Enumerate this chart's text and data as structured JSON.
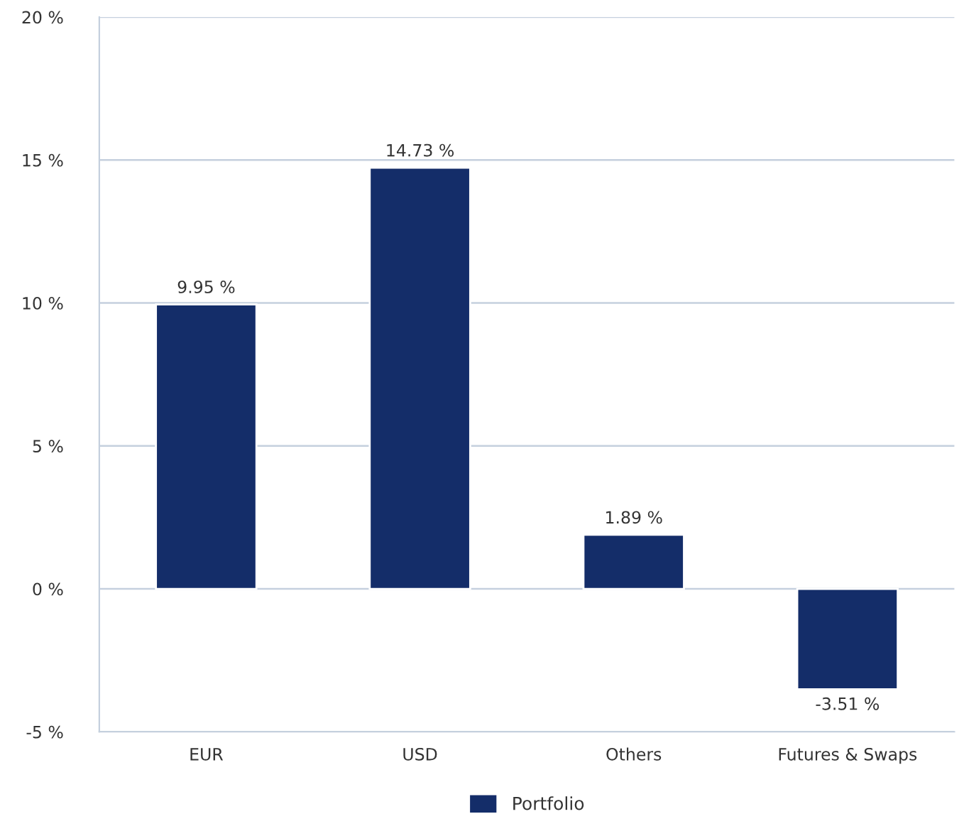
{
  "chart_data": {
    "type": "bar",
    "categories": [
      "EUR",
      "USD",
      "Others",
      "Futures & Swaps"
    ],
    "series": [
      {
        "name": "Portfolio",
        "color": "#142d69",
        "values": [
          9.95,
          14.73,
          1.89,
          -3.51
        ],
        "value_labels": [
          "9.95 %",
          "14.73 %",
          "1.89 %",
          "-3.51 %"
        ]
      }
    ],
    "ylim": [
      -5,
      20
    ],
    "yticks": [
      {
        "value": -5,
        "label": "-5 %"
      },
      {
        "value": 0,
        "label": "0 %"
      },
      {
        "value": 5,
        "label": "5 %"
      },
      {
        "value": 10,
        "label": "10 %"
      },
      {
        "value": 15,
        "label": "15 %"
      },
      {
        "value": 20,
        "label": "20 %"
      }
    ],
    "grid": "y",
    "legend": "bottom"
  }
}
